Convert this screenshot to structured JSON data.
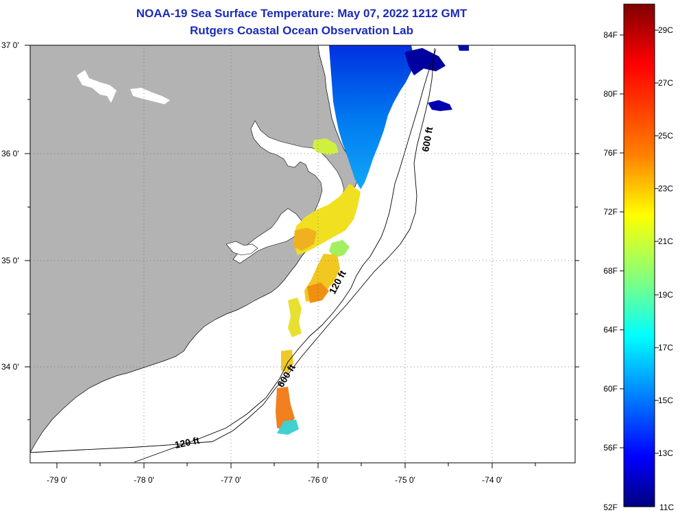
{
  "title": {
    "line1": "NOAA-19 Sea Surface Temperature:  May 07, 2022 1212 GMT",
    "line2": "Rutgers Coastal Ocean Observation Lab"
  },
  "map": {
    "lat_labels": [
      "37 0'",
      "36 0'",
      "35 0'",
      "34 0'"
    ],
    "lon_labels": [
      "-79 0'",
      "-78 0'",
      "-77 0'",
      "-76 0'",
      "-75 0'",
      "-74 0'"
    ],
    "contour_labels": [
      "600 ft",
      "120 ft",
      "600 ft",
      "120 ft"
    ],
    "colors": {
      "land": "#b3b3b3",
      "water": "#ffffff",
      "grid": "#666666"
    }
  },
  "colorbar": {
    "fahrenheit_labels": [
      "84F",
      "80F",
      "76F",
      "72F",
      "68F",
      "64F",
      "60F",
      "56F",
      "52F"
    ],
    "celsius_labels": [
      "29C",
      "27C",
      "25C",
      "23C",
      "21C",
      "19C",
      "17C",
      "15C",
      "13C",
      "11C"
    ],
    "colors": [
      "#800000",
      "#ff0000",
      "#ff8000",
      "#ffff00",
      "#80ff80",
      "#00ffff",
      "#0080ff",
      "#0000ff",
      "#000080"
    ]
  }
}
